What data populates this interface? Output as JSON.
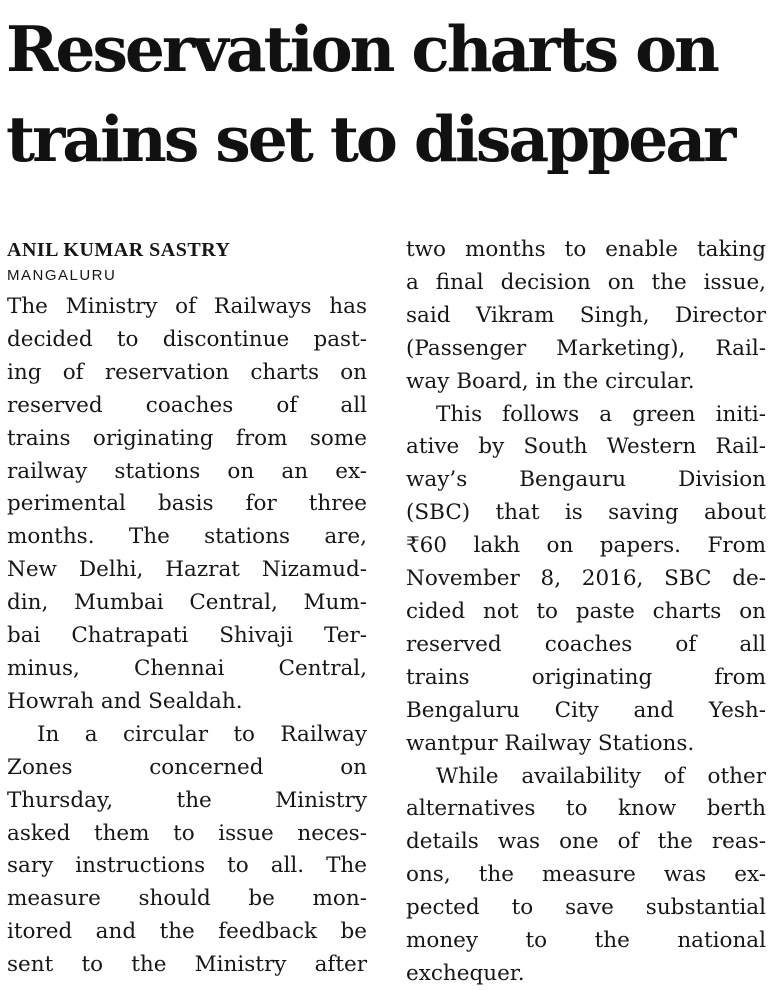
{
  "article": {
    "headline": [
      "Reservation charts on",
      "trains set to disappear"
    ],
    "byline": "ANIL KUMAR SASTRY",
    "dateline": "MANGALURU",
    "column_left": [
      {
        "text": "The Ministry of Railways has",
        "indent": false,
        "end": false
      },
      {
        "text": "decided to discontinue past-",
        "indent": false,
        "end": false
      },
      {
        "text": "ing of reservation charts on",
        "indent": false,
        "end": false
      },
      {
        "text": "reserved coaches of all",
        "indent": false,
        "end": false
      },
      {
        "text": "trains originating from some",
        "indent": false,
        "end": false
      },
      {
        "text": "railway stations on an ex-",
        "indent": false,
        "end": false
      },
      {
        "text": "perimental basis for three",
        "indent": false,
        "end": false
      },
      {
        "text": "months. The stations are,",
        "indent": false,
        "end": false
      },
      {
        "text": "New Delhi, Hazrat Nizamud-",
        "indent": false,
        "end": false
      },
      {
        "text": "din, Mumbai Central, Mum-",
        "indent": false,
        "end": false
      },
      {
        "text": "bai Chatrapati Shivaji Ter-",
        "indent": false,
        "end": false
      },
      {
        "text": "minus, Chennai Central,",
        "indent": false,
        "end": false
      },
      {
        "text": "Howrah and Sealdah.",
        "indent": false,
        "end": true
      },
      {
        "text": "In a circular to Railway",
        "indent": true,
        "end": false
      },
      {
        "text": "Zones concerned on",
        "indent": false,
        "end": false
      },
      {
        "text": "Thursday, the Ministry",
        "indent": false,
        "end": false
      },
      {
        "text": "asked them to issue neces-",
        "indent": false,
        "end": false
      },
      {
        "text": "sary instructions to all. The",
        "indent": false,
        "end": false
      },
      {
        "text": "measure should be mon-",
        "indent": false,
        "end": false
      },
      {
        "text": "itored and the feedback be",
        "indent": false,
        "end": false
      },
      {
        "text": "sent to the Ministry after",
        "indent": false,
        "end": false
      }
    ],
    "column_right": [
      {
        "text": "two months to enable taking",
        "indent": false,
        "end": false
      },
      {
        "text": "a final decision on the issue,",
        "indent": false,
        "end": false
      },
      {
        "text": "said Vikram Singh, Director",
        "indent": false,
        "end": false
      },
      {
        "text": "(Passenger Marketing), Rail-",
        "indent": false,
        "end": false
      },
      {
        "text": "way Board, in the circular.",
        "indent": false,
        "end": true
      },
      {
        "text": "This follows a green initi-",
        "indent": true,
        "end": false
      },
      {
        "text": "ative by South Western Rail-",
        "indent": false,
        "end": false
      },
      {
        "text": "way’s Bengauru Division",
        "indent": false,
        "end": false
      },
      {
        "text": "(SBC) that is saving about",
        "indent": false,
        "end": false
      },
      {
        "text": "₹60 lakh on papers. From",
        "indent": false,
        "end": false
      },
      {
        "text": "November 8, 2016, SBC de-",
        "indent": false,
        "end": false
      },
      {
        "text": "cided not to paste charts on",
        "indent": false,
        "end": false
      },
      {
        "text": "reserved coaches of all",
        "indent": false,
        "end": false
      },
      {
        "text": "trains originating from",
        "indent": false,
        "end": false
      },
      {
        "text": "Bengaluru City and Yesh-",
        "indent": false,
        "end": false
      },
      {
        "text": "wantpur Railway Stations.",
        "indent": false,
        "end": true
      },
      {
        "text": "While availability of other",
        "indent": true,
        "end": false
      },
      {
        "text": "alternatives to know berth",
        "indent": false,
        "end": false
      },
      {
        "text": "details was one of the reas-",
        "indent": false,
        "end": false
      },
      {
        "text": "ons, the measure was ex-",
        "indent": false,
        "end": false
      },
      {
        "text": "pected to save substantial",
        "indent": false,
        "end": false
      },
      {
        "text": "money to the national",
        "indent": false,
        "end": false
      },
      {
        "text": "exchequer.",
        "indent": false,
        "end": true
      }
    ]
  }
}
